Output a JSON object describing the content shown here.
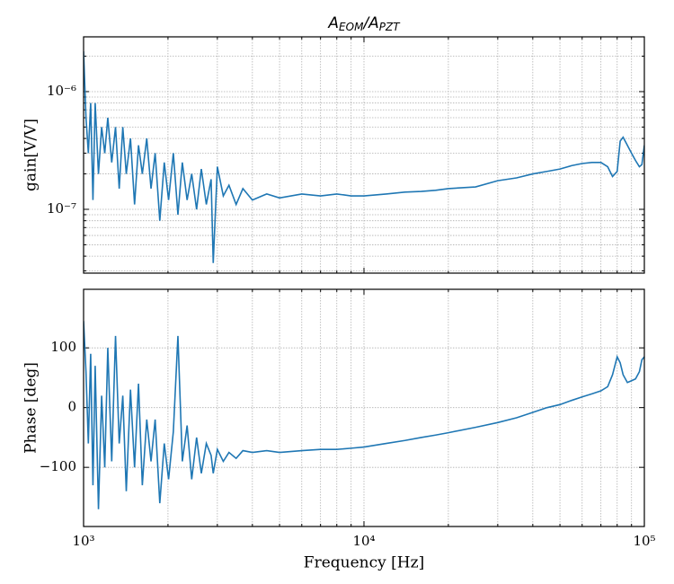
{
  "chart_data": [
    {
      "type": "line",
      "title": [
        "A",
        "EOM",
        "/A",
        "PZT"
      ],
      "ylabel": "gain[V/V]",
      "xscale": "log",
      "yscale": "log",
      "grid": true,
      "color": "#1f77b4",
      "x": [
        1000,
        1020,
        1040,
        1060,
        1080,
        1100,
        1130,
        1160,
        1190,
        1220,
        1260,
        1300,
        1340,
        1380,
        1420,
        1470,
        1520,
        1570,
        1620,
        1680,
        1740,
        1800,
        1870,
        1940,
        2010,
        2090,
        2170,
        2250,
        2340,
        2430,
        2530,
        2630,
        2740,
        2850,
        2900,
        3000,
        3150,
        3300,
        3500,
        3700,
        4000,
        4500,
        5000,
        6000,
        7000,
        8000,
        9000,
        10000,
        12000,
        14000,
        16000,
        18000,
        20000,
        25000,
        30000,
        35000,
        40000,
        45000,
        50000,
        55000,
        60000,
        65000,
        70000,
        74000,
        77000,
        80000,
        82000,
        84000,
        87000,
        90000,
        93000,
        96000,
        98000,
        100000
      ],
      "values": [
        2.2e-06,
        6e-07,
        3e-07,
        8e-07,
        1.2e-07,
        8e-07,
        2e-07,
        5e-07,
        3e-07,
        6e-07,
        2.5e-07,
        5e-07,
        1.5e-07,
        5e-07,
        2e-07,
        4e-07,
        1.1e-07,
        3.5e-07,
        2e-07,
        4e-07,
        1.5e-07,
        3e-07,
        8e-08,
        2.5e-07,
        1.2e-07,
        3e-07,
        9e-08,
        2.5e-07,
        1.2e-07,
        2e-07,
        1e-07,
        2.2e-07,
        1.1e-07,
        1.8e-07,
        3.5e-08,
        2.3e-07,
        1.3e-07,
        1.6e-07,
        1.1e-07,
        1.5e-07,
        1.2e-07,
        1.35e-07,
        1.25e-07,
        1.35e-07,
        1.3e-07,
        1.35e-07,
        1.3e-07,
        1.3e-07,
        1.35e-07,
        1.4e-07,
        1.42e-07,
        1.45e-07,
        1.5e-07,
        1.55e-07,
        1.75e-07,
        1.85e-07,
        2e-07,
        2.1e-07,
        2.2e-07,
        2.35e-07,
        2.45e-07,
        2.5e-07,
        2.5e-07,
        2.3e-07,
        1.9e-07,
        2.1e-07,
        3.8e-07,
        4.1e-07,
        3.5e-07,
        3e-07,
        2.6e-07,
        2.3e-07,
        2.4e-07,
        3.5e-07
      ],
      "xlim": [
        1000,
        100000
      ],
      "ylim": [
        2.87e-08,
        2.92e-06
      ],
      "xticks": [
        1000,
        10000,
        100000
      ],
      "xminor": [
        2000,
        3000,
        4000,
        5000,
        6000,
        7000,
        8000,
        9000,
        20000,
        30000,
        40000,
        50000,
        60000,
        70000,
        80000,
        90000
      ],
      "yticks": [
        {
          "value": 1e-07,
          "label": "10⁻⁷"
        },
        {
          "value": 1e-06,
          "label": "10⁻⁶"
        }
      ],
      "yminor": [
        3e-08,
        4e-08,
        5e-08,
        6e-08,
        7e-08,
        8e-08,
        9e-08,
        2e-07,
        3e-07,
        4e-07,
        5e-07,
        6e-07,
        7e-07,
        8e-07,
        9e-07,
        2e-06
      ]
    },
    {
      "type": "line",
      "xlabel": "Frequency [Hz]",
      "ylabel": "Phase [deg]",
      "xscale": "log",
      "yscale": "linear",
      "grid": true,
      "color": "#1f77b4",
      "x": [
        1000,
        1020,
        1040,
        1060,
        1080,
        1100,
        1130,
        1160,
        1190,
        1220,
        1260,
        1300,
        1340,
        1380,
        1420,
        1470,
        1520,
        1570,
        1620,
        1680,
        1740,
        1800,
        1870,
        1940,
        2010,
        2090,
        2170,
        2250,
        2340,
        2430,
        2530,
        2630,
        2740,
        2850,
        2900,
        3000,
        3150,
        3300,
        3500,
        3700,
        4000,
        4500,
        5000,
        6000,
        7000,
        8000,
        9000,
        10000,
        12000,
        14000,
        16000,
        18000,
        20000,
        25000,
        30000,
        35000,
        40000,
        45000,
        50000,
        55000,
        60000,
        65000,
        70000,
        74000,
        77000,
        80000,
        82000,
        84000,
        87000,
        90000,
        93000,
        96000,
        98000,
        100000
      ],
      "values": [
        145,
        60,
        -60,
        90,
        -130,
        70,
        -170,
        20,
        -100,
        100,
        -90,
        120,
        -60,
        20,
        -140,
        30,
        -100,
        40,
        -130,
        -20,
        -90,
        -20,
        -160,
        -60,
        -120,
        -40,
        120,
        -90,
        -30,
        -120,
        -50,
        -110,
        -60,
        -80,
        -110,
        -70,
        -90,
        -75,
        -85,
        -72,
        -75,
        -72,
        -75,
        -72,
        -70,
        -70,
        -68,
        -66,
        -60,
        -55,
        -50,
        -46,
        -42,
        -33,
        -25,
        -17,
        -8,
        0,
        5,
        12,
        18,
        23,
        28,
        35,
        55,
        85,
        75,
        55,
        42,
        45,
        48,
        60,
        80,
        85
      ],
      "xlim": [
        1000,
        100000
      ],
      "ylim": [
        -199,
        198
      ],
      "xticks": [
        {
          "value": 1000,
          "label": "10³"
        },
        {
          "value": 10000,
          "label": "10⁴"
        },
        {
          "value": 100000,
          "label": "10⁵"
        }
      ],
      "xminor": [
        2000,
        3000,
        4000,
        5000,
        6000,
        7000,
        8000,
        9000,
        20000,
        30000,
        40000,
        50000,
        60000,
        70000,
        80000,
        90000
      ],
      "yticks": [
        {
          "value": -100,
          "label": "−100"
        },
        0,
        100
      ]
    }
  ]
}
